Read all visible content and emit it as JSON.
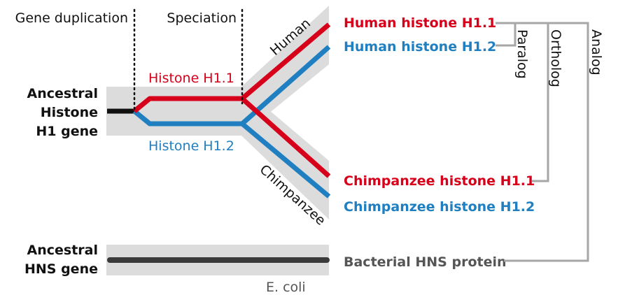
{
  "events": {
    "gene_duplication": "Gene duplication",
    "speciation": "Speciation"
  },
  "ancestors": {
    "histone": [
      "Ancestral",
      "Histone",
      "H1 gene"
    ],
    "hns": [
      "Ancestral",
      "HNS gene"
    ]
  },
  "branches": {
    "h11": "Histone H1.1",
    "h12": "Histone H1.2",
    "human": "Human",
    "chimp": "Chimpanzee",
    "ecoli": "E. coli"
  },
  "genes": {
    "human_h11": "Human histone H1.1",
    "human_h12": "Human histone H1.2",
    "chimp_h11": "Chimpanzee histone H1.1",
    "chimp_h12": "Chimpanzee histone H1.2",
    "bacterial": "Bacterial HNS protein"
  },
  "relations": {
    "paralog": "Paralog",
    "ortholog": "Ortholog",
    "analog": "Analog"
  },
  "colors": {
    "h11": "#d7001a",
    "h12": "#1f7fc0",
    "ancestral": "#111111",
    "hns": "#3a3a3a",
    "band": "#dcdcdc",
    "bracket": "#a6a6a6",
    "muted": "#555555"
  }
}
